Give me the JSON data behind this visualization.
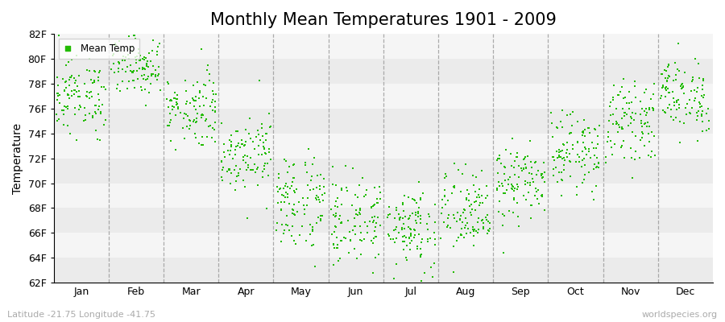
{
  "title": "Monthly Mean Temperatures 1901 - 2009",
  "ylabel": "Temperature",
  "months": [
    "Jan",
    "Feb",
    "Mar",
    "Apr",
    "May",
    "Jun",
    "Jul",
    "Aug",
    "Sep",
    "Oct",
    "Nov",
    "Dec"
  ],
  "ylim": [
    62,
    82
  ],
  "yticks": [
    62,
    64,
    66,
    68,
    70,
    72,
    74,
    76,
    78,
    80,
    82
  ],
  "ytick_labels": [
    "62F",
    "64F",
    "66F",
    "68F",
    "70F",
    "72F",
    "74F",
    "76F",
    "78F",
    "80F",
    "82F"
  ],
  "scatter_color": "#22BB00",
  "background_color": "#FFFFFF",
  "plot_bg_color": "#FFFFFF",
  "title_fontsize": 15,
  "axis_label_fontsize": 10,
  "tick_fontsize": 9,
  "subtitle": "Latitude -21.75 Longitude -41.75",
  "watermark": "worldspecies.org",
  "legend_label": "Mean Temp",
  "n_years": 109,
  "start_year": 1901,
  "end_year": 2009,
  "mean_by_month": [
    77.0,
    79.5,
    76.0,
    72.5,
    68.5,
    67.0,
    66.5,
    67.5,
    70.0,
    72.5,
    75.0,
    77.0
  ],
  "std_by_month": [
    1.5,
    1.2,
    1.5,
    1.5,
    2.0,
    1.8,
    1.8,
    1.8,
    1.5,
    1.5,
    1.5,
    1.5
  ],
  "stripe_colors": [
    "#EBEBEB",
    "#F5F5F5"
  ],
  "dashed_line_color": "#999999",
  "marker_size": 4
}
